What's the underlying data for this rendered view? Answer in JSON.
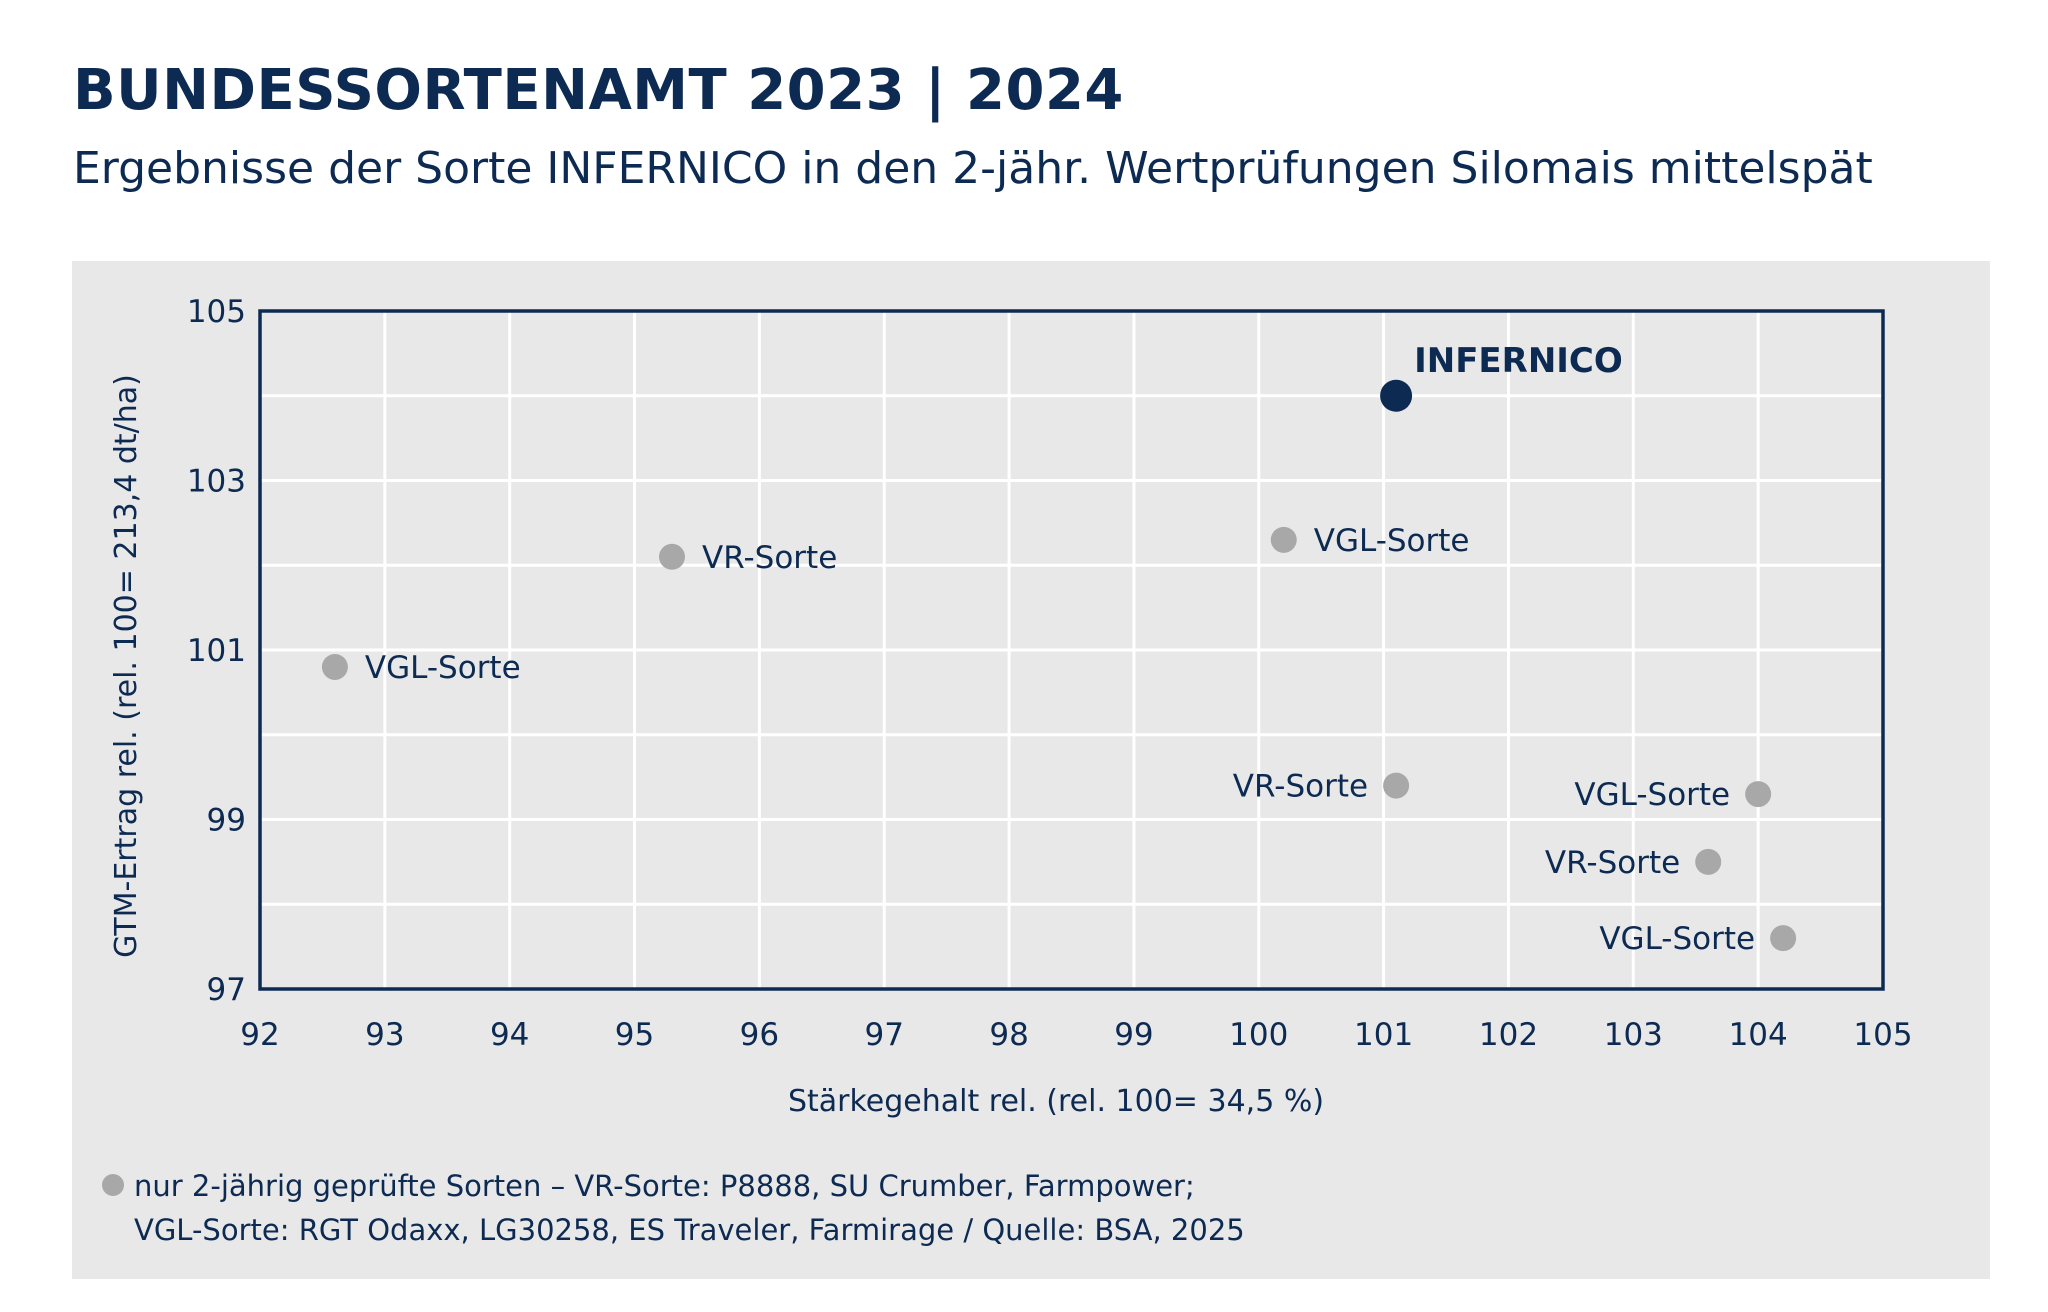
{
  "header": {
    "title": "BUNDESSORTENAMT 2023 | 2024",
    "subtitle": "Ergebnisse der Sorte INFERNICO in den 2-jähr. Wertprüfungen Silomais mittelspät"
  },
  "chart_data": {
    "type": "scatter",
    "xlabel": "Stärkegehalt rel. (rel. 100= 34,5 %)",
    "ylabel": "GTM-Ertrag rel. (rel. 100= 213,4 dt/ha)",
    "xlim": [
      92,
      105
    ],
    "ylim": [
      97,
      105
    ],
    "xticks": [
      92,
      93,
      94,
      95,
      96,
      97,
      98,
      99,
      100,
      101,
      102,
      103,
      104,
      105
    ],
    "yticks": [
      97,
      99,
      101,
      103,
      105
    ],
    "grid": true,
    "points": [
      {
        "label": "INFERNICO",
        "x": 101.1,
        "y": 104.0,
        "highlight": true,
        "label_side": "above-right"
      },
      {
        "label": "VGL-Sorte",
        "x": 100.2,
        "y": 102.3,
        "highlight": false,
        "label_side": "right"
      },
      {
        "label": "VR-Sorte",
        "x": 95.3,
        "y": 102.1,
        "highlight": false,
        "label_side": "right"
      },
      {
        "label": "VGL-Sorte",
        "x": 92.6,
        "y": 100.8,
        "highlight": false,
        "label_side": "right"
      },
      {
        "label": "VR-Sorte",
        "x": 101.1,
        "y": 99.4,
        "highlight": false,
        "label_side": "left"
      },
      {
        "label": "VGL-Sorte",
        "x": 104.0,
        "y": 99.3,
        "highlight": false,
        "label_side": "left"
      },
      {
        "label": "VR-Sorte",
        "x": 103.6,
        "y": 98.5,
        "highlight": false,
        "label_side": "left"
      },
      {
        "label": "VGL-Sorte",
        "x": 104.2,
        "y": 97.6,
        "highlight": false,
        "label_side": "left"
      }
    ],
    "colors": {
      "highlight": "#0d2a52",
      "others": "#a8a8a8",
      "grid": "#ffffff",
      "frame": "#0d2a52",
      "text": "#0d2a52",
      "panel": "#e8e8e8"
    }
  },
  "footnote": {
    "line1": "nur 2-jährig geprüfte Sorten –  VR-Sorte: P8888, SU Crumber, Farmpower;",
    "line2": "VGL-Sorte: RGT Odaxx, LG30258, ES Traveler, Farmirage / Quelle: BSA, 2025",
    "legend_icon": "grey-dot-icon"
  }
}
